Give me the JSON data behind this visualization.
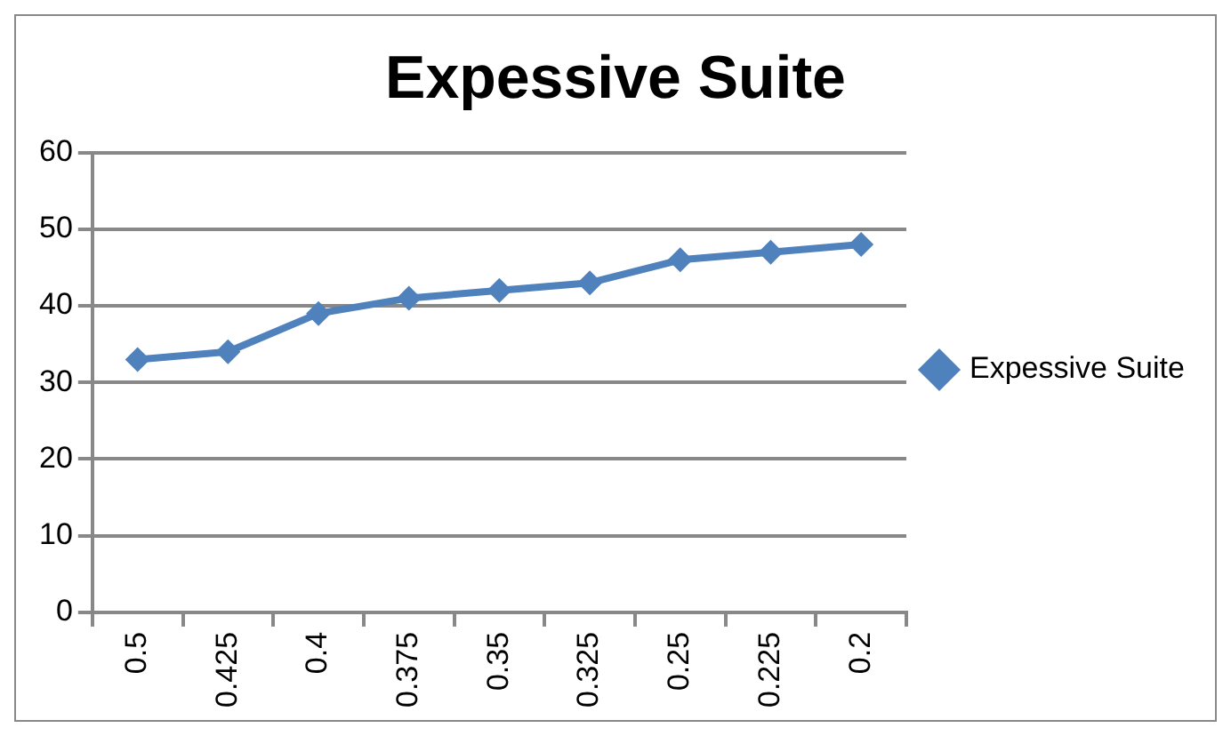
{
  "chart_data": {
    "type": "line",
    "title": "Expessive Suite",
    "categories": [
      "0.5",
      "0.425",
      "0.4",
      "0.375",
      "0.35",
      "0.325",
      "0.25",
      "0.225",
      "0.2"
    ],
    "series": [
      {
        "name": "Expessive Suite",
        "color": "#4f81bd",
        "values": [
          33,
          34,
          39,
          41,
          42,
          43,
          46,
          47,
          48
        ]
      }
    ],
    "ylim": [
      0,
      60
    ],
    "yticks": [
      0,
      10,
      20,
      30,
      40,
      50,
      60
    ],
    "grid": "y",
    "legend": "right",
    "marker": "diamond",
    "line_style": "solid"
  }
}
